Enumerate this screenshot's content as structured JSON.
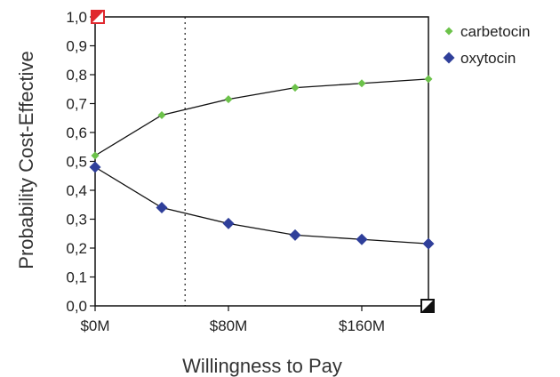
{
  "chart_data": {
    "type": "line",
    "title": "",
    "xlabel": "Willingness to Pay",
    "ylabel": "Probability Cost-Effective",
    "xlim": [
      0,
      200
    ],
    "ylim": [
      0,
      1
    ],
    "x_ticks": [
      0,
      80,
      160
    ],
    "x_tick_labels": [
      "$0M",
      "$80M",
      "$160M"
    ],
    "y_ticks": [
      0,
      0.1,
      0.2,
      0.3,
      0.4,
      0.5,
      0.6,
      0.7,
      0.8,
      0.9,
      1.0
    ],
    "y_tick_labels": [
      "0,0",
      "0,1",
      "0,2",
      "0,3",
      "0,4",
      "0,5",
      "0,6",
      "0,7",
      "0,8",
      "0,9",
      "1,0"
    ],
    "x": [
      0,
      40,
      80,
      120,
      160,
      200
    ],
    "series": [
      {
        "name": "carbetocin",
        "color": "#6cc24a",
        "marker": "small-diamond",
        "values": [
          0.52,
          0.66,
          0.715,
          0.755,
          0.77,
          0.785
        ]
      },
      {
        "name": "oxytocin",
        "color": "#2f3f9a",
        "marker": "diamond",
        "values": [
          0.48,
          0.34,
          0.285,
          0.245,
          0.23,
          0.215
        ]
      }
    ],
    "reference_line_x": 54,
    "grid": false,
    "legend_position": "top-right"
  }
}
